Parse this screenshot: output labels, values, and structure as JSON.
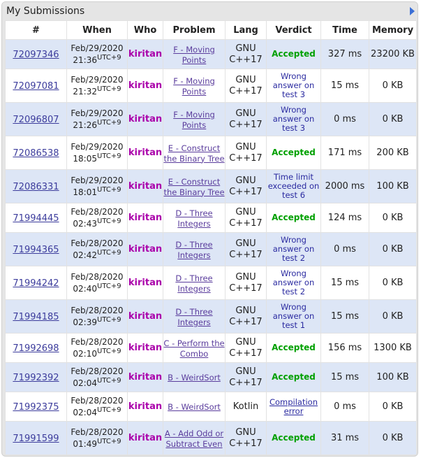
{
  "panel": {
    "title": "My Submissions"
  },
  "columns": [
    "#",
    "When",
    "Who",
    "Problem",
    "Lang",
    "Verdict",
    "Time",
    "Memory"
  ],
  "rows": [
    {
      "id": "72097346",
      "date": "Feb/29/2020",
      "time": "21:36",
      "tz": "UTC+9",
      "who": "kiritan",
      "problem": "F - Moving Points",
      "lang": "GNU C++17",
      "verdict": "Accepted",
      "accepted": true,
      "runtime": "327 ms",
      "memory": "23200 KB"
    },
    {
      "id": "72097081",
      "date": "Feb/29/2020",
      "time": "21:32",
      "tz": "UTC+9",
      "who": "kiritan",
      "problem": "F - Moving Points",
      "lang": "GNU C++17",
      "verdict": "Wrong answer on test 3",
      "accepted": false,
      "runtime": "15 ms",
      "memory": "0 KB"
    },
    {
      "id": "72096807",
      "date": "Feb/29/2020",
      "time": "21:26",
      "tz": "UTC+9",
      "who": "kiritan",
      "problem": "F - Moving Points",
      "lang": "GNU C++17",
      "verdict": "Wrong answer on test 3",
      "accepted": false,
      "runtime": "0 ms",
      "memory": "0 KB"
    },
    {
      "id": "72086538",
      "date": "Feb/29/2020",
      "time": "18:05",
      "tz": "UTC+9",
      "who": "kiritan",
      "problem": "E - Construct the Binary Tree",
      "lang": "GNU C++17",
      "verdict": "Accepted",
      "accepted": true,
      "runtime": "171 ms",
      "memory": "200 KB"
    },
    {
      "id": "72086331",
      "date": "Feb/29/2020",
      "time": "18:01",
      "tz": "UTC+9",
      "who": "kiritan",
      "problem": "E - Construct the Binary Tree",
      "lang": "GNU C++17",
      "verdict": "Time limit exceeded on test 6",
      "accepted": false,
      "runtime": "2000 ms",
      "memory": "100 KB"
    },
    {
      "id": "71994445",
      "date": "Feb/28/2020",
      "time": "02:43",
      "tz": "UTC+9",
      "who": "kiritan",
      "problem": "D - Three Integers",
      "lang": "GNU C++17",
      "verdict": "Accepted",
      "accepted": true,
      "runtime": "124 ms",
      "memory": "0 KB"
    },
    {
      "id": "71994365",
      "date": "Feb/28/2020",
      "time": "02:42",
      "tz": "UTC+9",
      "who": "kiritan",
      "problem": "D - Three Integers",
      "lang": "GNU C++17",
      "verdict": "Wrong answer on test 2",
      "accepted": false,
      "runtime": "0 ms",
      "memory": "0 KB"
    },
    {
      "id": "71994242",
      "date": "Feb/28/2020",
      "time": "02:40",
      "tz": "UTC+9",
      "who": "kiritan",
      "problem": "D - Three Integers",
      "lang": "GNU C++17",
      "verdict": "Wrong answer on test 2",
      "accepted": false,
      "runtime": "15 ms",
      "memory": "0 KB"
    },
    {
      "id": "71994185",
      "date": "Feb/28/2020",
      "time": "02:39",
      "tz": "UTC+9",
      "who": "kiritan",
      "problem": "D - Three Integers",
      "lang": "GNU C++17",
      "verdict": "Wrong answer on test 1",
      "accepted": false,
      "runtime": "15 ms",
      "memory": "0 KB"
    },
    {
      "id": "71992698",
      "date": "Feb/28/2020",
      "time": "02:10",
      "tz": "UTC+9",
      "who": "kiritan",
      "problem": "C - Perform the Combo",
      "lang": "GNU C++17",
      "verdict": "Accepted",
      "accepted": true,
      "runtime": "156 ms",
      "memory": "1300 KB"
    },
    {
      "id": "71992392",
      "date": "Feb/28/2020",
      "time": "02:04",
      "tz": "UTC+9",
      "who": "kiritan",
      "problem": "B - WeirdSort",
      "lang": "GNU C++17",
      "verdict": "Accepted",
      "accepted": true,
      "runtime": "15 ms",
      "memory": "100 KB"
    },
    {
      "id": "71992375",
      "date": "Feb/28/2020",
      "time": "02:04",
      "tz": "UTC+9",
      "who": "kiritan",
      "problem": "B - WeirdSort",
      "lang": "Kotlin",
      "verdict": "Compilation error",
      "accepted": false,
      "link": true,
      "runtime": "0 ms",
      "memory": "0 KB"
    },
    {
      "id": "71991599",
      "date": "Feb/28/2020",
      "time": "01:49",
      "tz": "UTC+9",
      "who": "kiritan",
      "problem": "A - Add Odd or Subtract Even",
      "lang": "GNU C++17",
      "verdict": "Accepted",
      "accepted": true,
      "runtime": "31 ms",
      "memory": "0 KB"
    }
  ],
  "colors": {
    "accepted": "#00a000",
    "who": "#aa00aa",
    "row_dark": "#dde6f6",
    "link": "#3c3c9c"
  }
}
